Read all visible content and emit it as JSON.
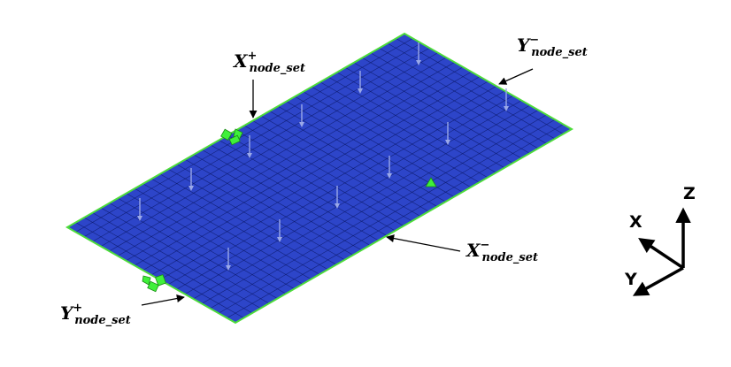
{
  "labels": {
    "x_plus": {
      "base": "X",
      "sup": "+",
      "sub": "node_set"
    },
    "y_minus": {
      "base": "Y",
      "sup": "−",
      "sub": "node_set"
    },
    "x_minus": {
      "base": "X",
      "sup": "−",
      "sub": "node_set"
    },
    "y_plus": {
      "base": "Y",
      "sup": "+",
      "sub": "node_set"
    }
  },
  "triad": {
    "x": "X",
    "y": "Y",
    "z": "Z"
  },
  "colors": {
    "plate": "#2d45c9",
    "mesh": "#0a1560",
    "edge": "#4ddc3a",
    "constraint": "#3ff03a",
    "load_arrow": "#9aa8e8"
  }
}
